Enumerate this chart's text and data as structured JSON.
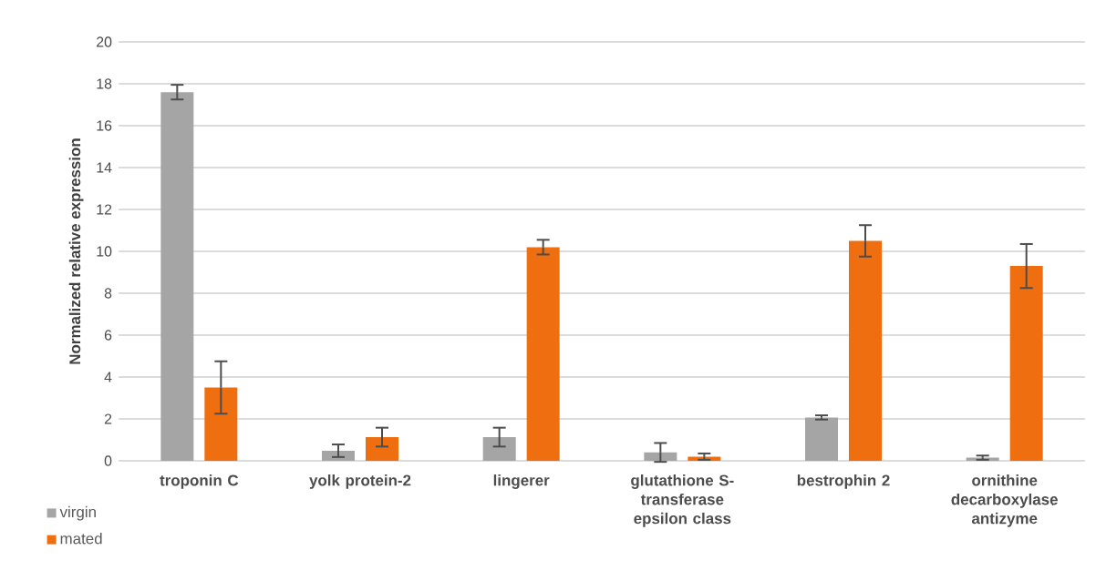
{
  "chart_data": {
    "type": "bar",
    "ylabel": "Normalized relative expression",
    "categories": [
      "troponin C",
      "yolk protein-2",
      "lingerer",
      "glutathione S-transferase epsilon class",
      "bestrophin 2",
      "ornithine decarboxylase antizyme"
    ],
    "series": [
      {
        "name": "virgin",
        "color": "#a5a5a5",
        "values": [
          17.6,
          0.48,
          1.13,
          0.4,
          2.07,
          0.15
        ],
        "errors": [
          0.35,
          0.3,
          0.45,
          0.45,
          0.1,
          0.1
        ]
      },
      {
        "name": "mated",
        "color": "#ee6e10",
        "values": [
          3.5,
          1.13,
          10.2,
          0.2,
          10.5,
          9.3
        ],
        "errors": [
          1.25,
          0.45,
          0.35,
          0.15,
          0.75,
          1.05
        ]
      }
    ],
    "ylim": [
      0,
      20
    ],
    "yticks": [
      0,
      2,
      4,
      6,
      8,
      10,
      12,
      14,
      16,
      18,
      20
    ],
    "grid": "y",
    "legend": "bottom left"
  }
}
